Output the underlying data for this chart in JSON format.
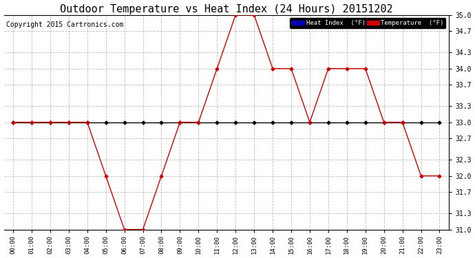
{
  "title": "Outdoor Temperature vs Heat Index (24 Hours) 20151202",
  "copyright": "Copyright 2015 Cartronics.com",
  "hours": [
    "00:00",
    "01:00",
    "02:00",
    "03:00",
    "04:00",
    "05:00",
    "06:00",
    "07:00",
    "08:00",
    "09:00",
    "10:00",
    "11:00",
    "12:00",
    "13:00",
    "14:00",
    "15:00",
    "16:00",
    "17:00",
    "18:00",
    "19:00",
    "20:00",
    "21:00",
    "22:00",
    "23:00"
  ],
  "temperature": [
    33.0,
    33.0,
    33.0,
    33.0,
    33.0,
    32.0,
    31.0,
    31.0,
    32.0,
    33.0,
    33.0,
    34.0,
    35.0,
    35.0,
    34.0,
    34.0,
    33.0,
    34.0,
    34.0,
    34.0,
    33.0,
    33.0,
    32.0,
    32.0
  ],
  "heat_index": [
    33.0,
    33.0,
    33.0,
    33.0,
    33.0,
    33.0,
    33.0,
    33.0,
    33.0,
    33.0,
    33.0,
    33.0,
    33.0,
    33.0,
    33.0,
    33.0,
    33.0,
    33.0,
    33.0,
    33.0,
    33.0,
    33.0,
    33.0,
    33.0
  ],
  "ylim": [
    31.0,
    35.0
  ],
  "yticks": [
    31.0,
    31.3,
    31.7,
    32.0,
    32.3,
    32.7,
    33.0,
    33.3,
    33.7,
    34.0,
    34.3,
    34.7,
    35.0
  ],
  "temp_color": "#cc0000",
  "heat_index_color": "#000000",
  "bg_color": "#ffffff",
  "grid_color": "#aaaaaa",
  "legend_heat_bg": "#0000bb",
  "legend_temp_bg": "#cc0000",
  "legend_text_color": "#ffffff",
  "title_fontsize": 11,
  "copyright_fontsize": 7
}
